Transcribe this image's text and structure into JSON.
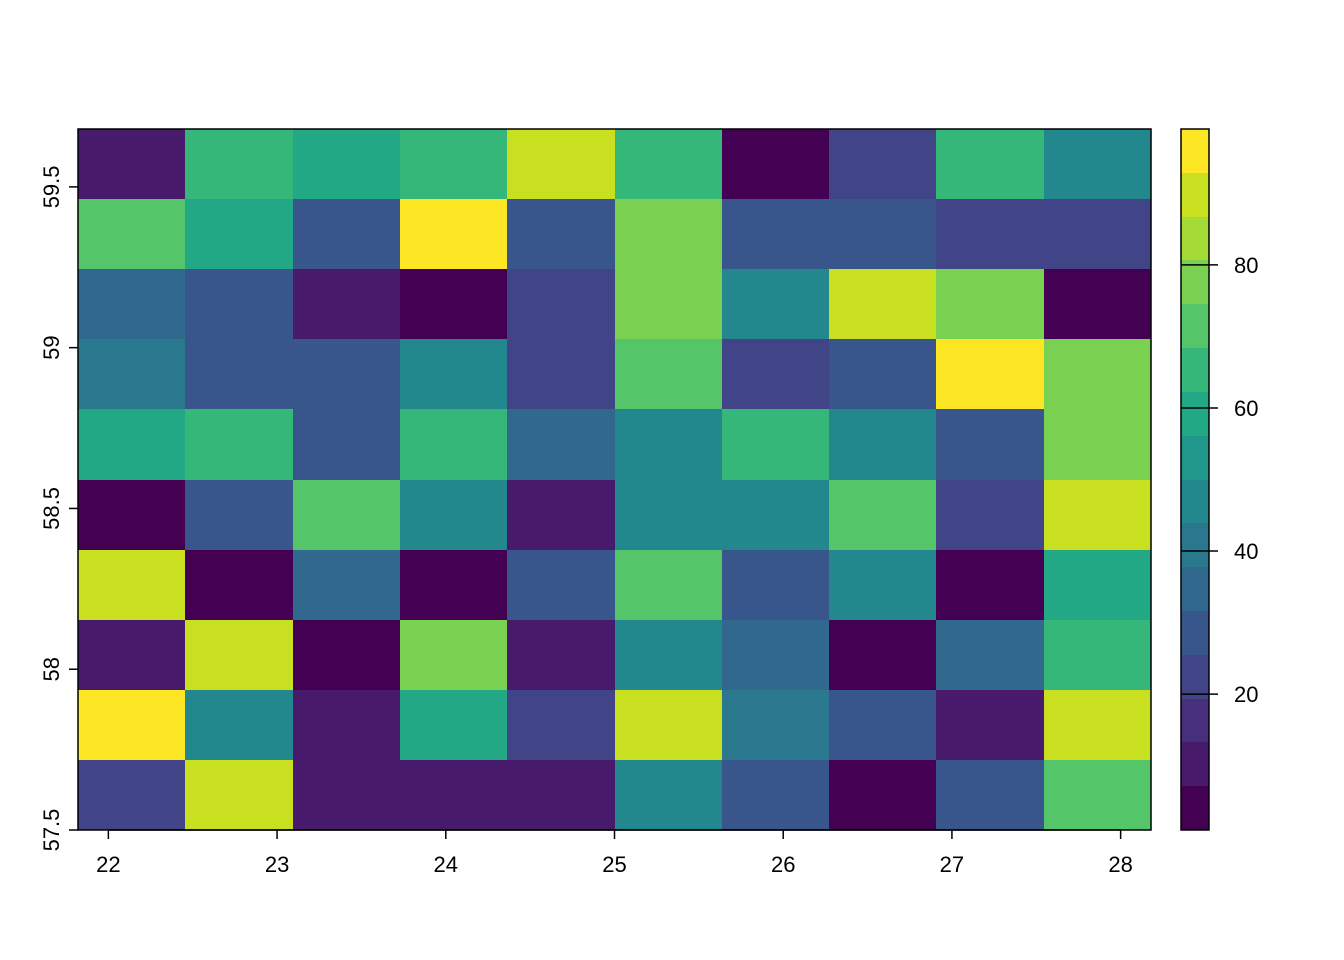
{
  "chart_data": {
    "type": "heatmap",
    "title": "",
    "xlabel": "",
    "ylabel": "",
    "x_ticks": [
      "22",
      "23",
      "24",
      "25",
      "26",
      "27",
      "28"
    ],
    "x_tick_values": [
      22,
      23,
      24,
      25,
      26,
      27,
      28
    ],
    "y_ticks": [
      "57.5",
      "58",
      "58.5",
      "59",
      "59.5"
    ],
    "y_tick_values": [
      57.5,
      58,
      58.5,
      59,
      59.5
    ],
    "xlim": [
      21.82,
      28.18
    ],
    "ylim": [
      57.5,
      59.68
    ],
    "n_cols": 10,
    "n_rows": 10,
    "grid": false,
    "legend": {
      "type": "colorbar",
      "position": "right",
      "ticks": [
        "20",
        "40",
        "60",
        "80"
      ],
      "tick_values": [
        20,
        40,
        60,
        80
      ],
      "range": [
        1,
        99
      ]
    },
    "palette": [
      "#440154",
      "#481A6C",
      "#472F7D",
      "#414487",
      "#39568C",
      "#31688E",
      "#2A788E",
      "#23888E",
      "#1F988B",
      "#22A884",
      "#35B779",
      "#54C568",
      "#7AD151",
      "#A5DB36",
      "#C8E020",
      "#FDE725"
    ],
    "values": [
      [
        12,
        65,
        58,
        64,
        89,
        64,
        1,
        20,
        64,
        48
      ],
      [
        72,
        58,
        28,
        98,
        28,
        78,
        28,
        28,
        20,
        20
      ],
      [
        35,
        28,
        13,
        1,
        20,
        78,
        48,
        89,
        78,
        1
      ],
      [
        42,
        28,
        28,
        48,
        20,
        72,
        20,
        28,
        98,
        78
      ],
      [
        58,
        65,
        28,
        64,
        35,
        48,
        64,
        48,
        28,
        78
      ],
      [
        1,
        28,
        72,
        48,
        13,
        48,
        48,
        72,
        20,
        89
      ],
      [
        89,
        1,
        35,
        1,
        28,
        72,
        28,
        48,
        1,
        58
      ],
      [
        13,
        89,
        1,
        78,
        13,
        48,
        35,
        1,
        35,
        64
      ],
      [
        98,
        48,
        13,
        58,
        20,
        89,
        42,
        28,
        13,
        89
      ],
      [
        20,
        89,
        13,
        13,
        13,
        48,
        28,
        1,
        28,
        72
      ]
    ]
  }
}
